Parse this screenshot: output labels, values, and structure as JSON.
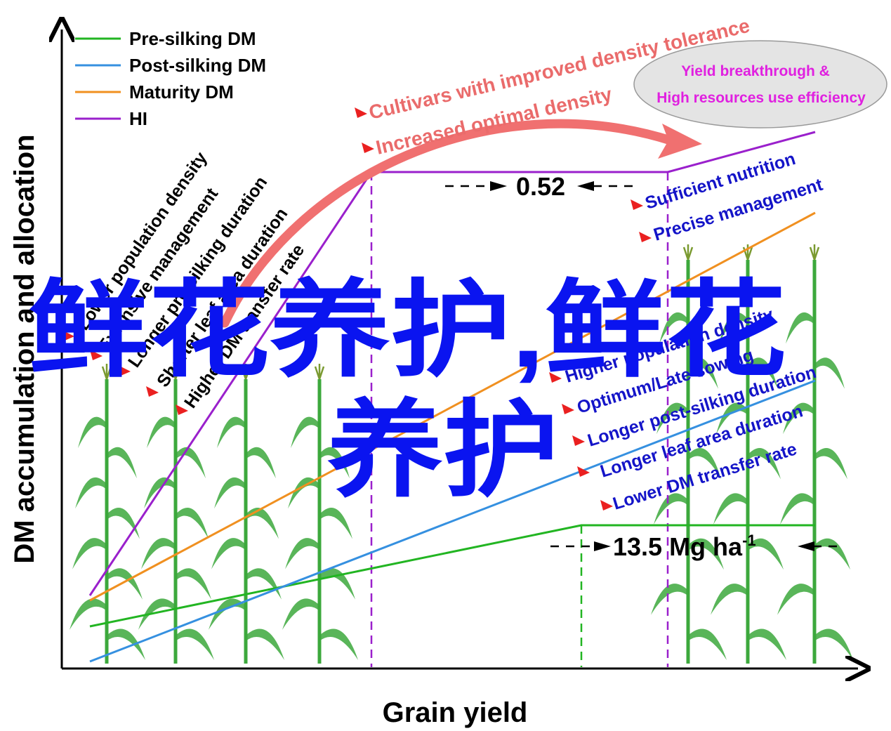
{
  "chart_data": {
    "type": "line",
    "xlabel": "Grain yield",
    "ylabel": "DM accumulation and allocation",
    "legend_position": "top-left",
    "grid": false,
    "series": [
      {
        "name": "Pre-silking DM",
        "color": "#22b522"
      },
      {
        "name": "Post-silking DM",
        "color": "#3590e0"
      },
      {
        "name": "Maturity DM",
        "color": "#f09020"
      },
      {
        "name": "HI",
        "color": "#9a20cc"
      }
    ],
    "annotations": {
      "hi_value": "0.52",
      "yield_value": "13.5 Mg ha",
      "yield_unit_sup": "-1",
      "red_top_1": "Cultivars with improved density tolerance",
      "red_top_2": "Increased optimal density",
      "ellipse_line_1": "Yield breakthrough &",
      "ellipse_line_2": "High resources use efficiency",
      "left_factors": [
        "Lower population density",
        "Extensive management",
        "Longer pre-silking duration",
        "Shorter leaf area duration",
        "Higher DM transfer rate"
      ],
      "right_factors": [
        "Sufficient nutrition",
        "Precise management",
        "Higher population density",
        "Optimum/Late sowing",
        "Longer  post-silking duration",
        "Longer leaf area duration",
        "Lower DM transfer rate"
      ]
    }
  },
  "watermark": {
    "line1": "鲜花养护,鲜花",
    "line2": "养护"
  },
  "colors": {
    "arrow": "#f07070",
    "ellipse_fill": "#e4e4e4",
    "plant_green": "#3ca83c"
  }
}
